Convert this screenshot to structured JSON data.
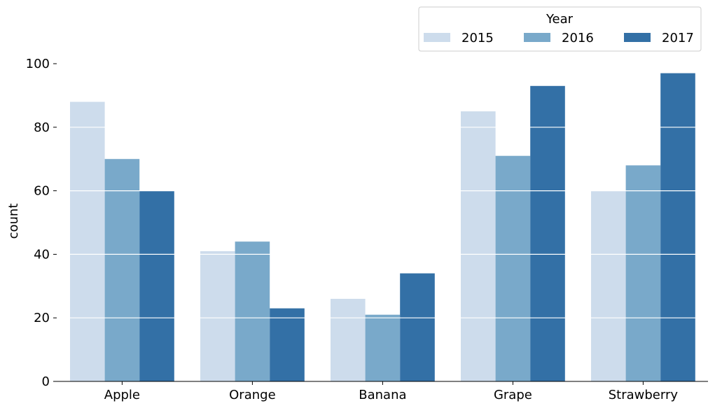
{
  "chart_data": {
    "type": "bar",
    "categories": [
      "Apple",
      "Orange",
      "Banana",
      "Grape",
      "Strawberry"
    ],
    "series": [
      {
        "name": "2015",
        "values": [
          88,
          41,
          26,
          85,
          60
        ],
        "color": "#cddcec"
      },
      {
        "name": "2016",
        "values": [
          70,
          44,
          21,
          71,
          68
        ],
        "color": "#79a9ca"
      },
      {
        "name": "2017",
        "values": [
          60,
          23,
          34,
          93,
          97
        ],
        "color": "#3370a6"
      }
    ],
    "title": "",
    "xlabel": "",
    "ylabel": "count",
    "ylim": [
      0,
      100
    ],
    "yticks": [
      0,
      20,
      40,
      60,
      80,
      100
    ],
    "grid": "horizontal white lines over bars",
    "legend": {
      "title": "Year",
      "placement": "top-right",
      "columns": 3
    }
  }
}
